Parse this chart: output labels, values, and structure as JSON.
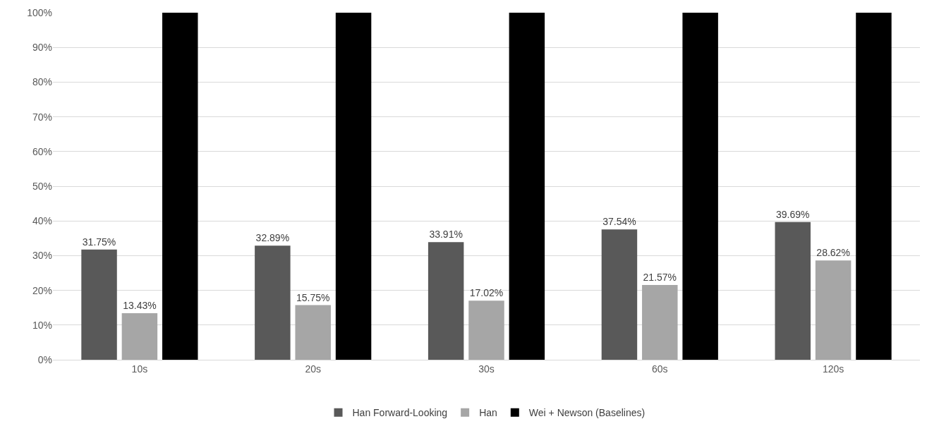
{
  "chart_data": {
    "type": "bar",
    "categories": [
      "10s",
      "20s",
      "30s",
      "60s",
      "120s"
    ],
    "series": [
      {
        "name": "Han Forward-Looking",
        "color": "#595959",
        "values": [
          31.75,
          32.89,
          33.91,
          37.54,
          39.69
        ],
        "value_labels": [
          "31.75%",
          "32.89%",
          "33.91%",
          "37.54%",
          "39.69%"
        ]
      },
      {
        "name": "Han",
        "color": "#a6a6a6",
        "values": [
          13.43,
          15.75,
          17.02,
          21.57,
          28.62
        ],
        "value_labels": [
          "13.43%",
          "15.75%",
          "17.02%",
          "21.57%",
          "28.62%"
        ]
      },
      {
        "name": "Wei + Newson (Baselines)",
        "color": "#000000",
        "values": [
          100,
          100,
          100,
          100,
          100
        ],
        "value_labels": [
          null,
          null,
          null,
          null,
          null
        ]
      }
    ],
    "ylim": [
      0,
      100
    ],
    "yticks": [
      {
        "value": 0,
        "label": "0%"
      },
      {
        "value": 10,
        "label": "10%"
      },
      {
        "value": 20,
        "label": "20%"
      },
      {
        "value": 30,
        "label": "30%"
      },
      {
        "value": 40,
        "label": "40%"
      },
      {
        "value": 50,
        "label": "50%"
      },
      {
        "value": 60,
        "label": "60%"
      },
      {
        "value": 70,
        "label": "70%"
      },
      {
        "value": 80,
        "label": "80%"
      },
      {
        "value": 90,
        "label": "90%"
      },
      {
        "value": 100,
        "label": "100%"
      }
    ],
    "grid": "y",
    "legend": "bottom"
  }
}
